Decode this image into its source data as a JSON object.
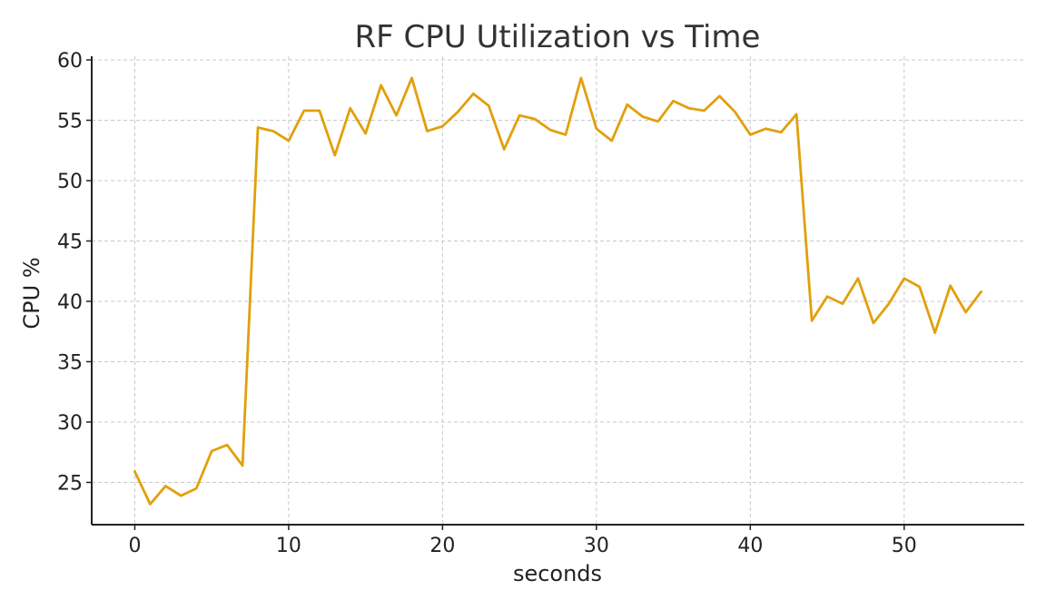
{
  "chart_data": {
    "type": "line",
    "title": "RF CPU Utilization vs Time",
    "xlabel": "seconds",
    "ylabel": "CPU %",
    "xlim": [
      -2.8,
      57.8
    ],
    "ylim": [
      21.5,
      60.3
    ],
    "xticks": [
      0,
      10,
      20,
      30,
      40,
      50
    ],
    "yticks": [
      25,
      30,
      35,
      40,
      45,
      50,
      55,
      60
    ],
    "grid": true,
    "legend": "none",
    "series": [
      {
        "name": "RF CPU",
        "color": "#e1a00b",
        "x": [
          0,
          1,
          2,
          3,
          4,
          5,
          6,
          7,
          8,
          9,
          10,
          11,
          12,
          13,
          14,
          15,
          16,
          17,
          18,
          19,
          20,
          21,
          22,
          23,
          24,
          25,
          26,
          27,
          28,
          29,
          30,
          31,
          32,
          33,
          34,
          35,
          36,
          37,
          38,
          39,
          40,
          41,
          42,
          43,
          44,
          45,
          46,
          47,
          48,
          49,
          50,
          51,
          52,
          53,
          54,
          55
        ],
        "y": [
          25.9,
          23.2,
          24.7,
          23.9,
          24.5,
          27.6,
          28.1,
          26.4,
          54.4,
          54.1,
          53.3,
          55.8,
          55.8,
          52.1,
          56.0,
          53.9,
          57.9,
          55.4,
          58.5,
          54.1,
          54.5,
          55.7,
          57.2,
          56.2,
          52.6,
          55.4,
          55.1,
          54.2,
          53.8,
          58.5,
          54.3,
          53.3,
          56.3,
          55.3,
          54.9,
          56.6,
          56.0,
          55.8,
          57.0,
          55.7,
          53.8,
          54.3,
          54.0,
          55.5,
          38.4,
          40.4,
          39.8,
          41.9,
          38.2,
          39.8,
          41.9,
          41.2,
          37.4,
          41.3,
          39.1,
          40.8
        ]
      }
    ]
  }
}
